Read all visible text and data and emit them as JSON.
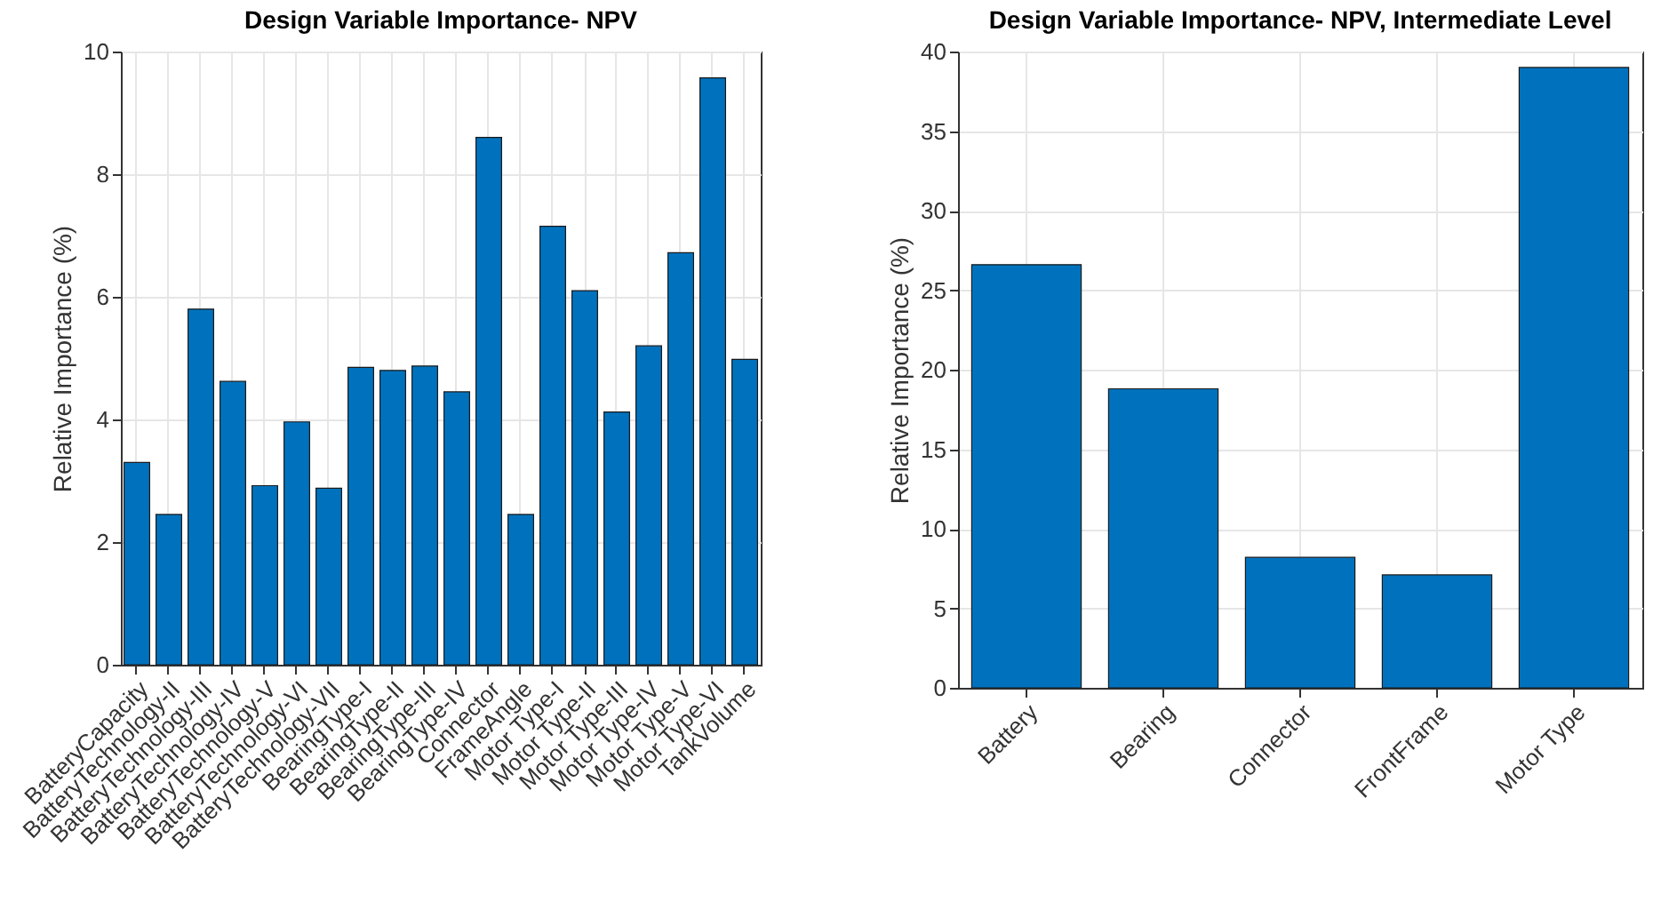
{
  "chart_data": [
    {
      "type": "bar",
      "title": "Design Variable Importance- NPV",
      "ylabel": "Relative Importance (%)",
      "categories": [
        "BatteryCapacity",
        "BatteryTechnology-II",
        "BatteryTechnology-III",
        "BatteryTechnology-IV",
        "BatteryTechnology-V",
        "BatteryTechnology-VI",
        "BatteryTechnology-VII",
        "BearingType-I",
        "BearingType-II",
        "BearingType-III",
        "BearingType-IV",
        "Connector",
        "FrameAngle",
        "Motor Type-I",
        "Motor Type-II",
        "Motor Type-III",
        "Motor Type-IV",
        "Motor Type-V",
        "Motor Type-VI",
        "TankVolume"
      ],
      "values": [
        3.3,
        2.45,
        5.8,
        4.62,
        2.92,
        3.96,
        2.88,
        4.85,
        4.8,
        4.87,
        4.45,
        8.6,
        2.45,
        7.15,
        6.1,
        4.12,
        5.2,
        6.72,
        9.57,
        4.98
      ],
      "color": "#0072bd",
      "ylim": [
        0,
        10
      ],
      "yticks": [
        0,
        2,
        4,
        6,
        8,
        10
      ],
      "grid": true
    },
    {
      "type": "bar",
      "title": "Design Variable Importance- NPV, Intermediate Level",
      "ylabel": "Relative Importance (%)",
      "categories": [
        "Battery",
        "Bearing",
        "Connector",
        "FrontFrame",
        "Motor Type"
      ],
      "values": [
        26.6,
        18.8,
        8.2,
        7.1,
        39.0
      ],
      "color": "#0072bd",
      "ylim": [
        0,
        40
      ],
      "yticks": [
        0,
        5,
        10,
        15,
        20,
        25,
        30,
        35,
        40
      ],
      "grid": true
    }
  ]
}
